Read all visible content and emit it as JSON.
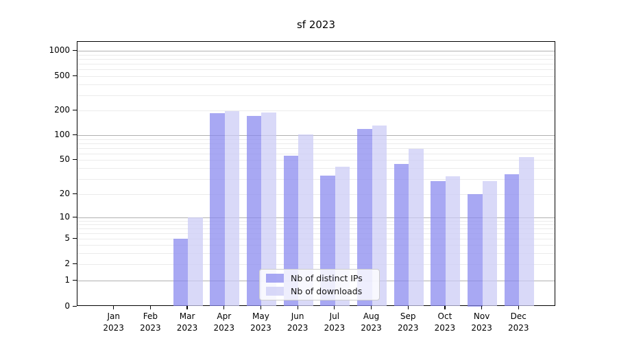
{
  "figure": {
    "title": "sf 2023"
  },
  "chart_data": {
    "type": "bar",
    "title": "sf 2023",
    "yscale": "symlog",
    "grid": true,
    "ylim": [
      0,
      1400
    ],
    "yticks": [
      0,
      1,
      2,
      5,
      10,
      20,
      50,
      100,
      200,
      500,
      1000
    ],
    "categories": [
      "Jan 2023",
      "Feb 2023",
      "Mar 2023",
      "Apr 2023",
      "May 2023",
      "Jun 2023",
      "Jul 2023",
      "Aug 2023",
      "Sep 2023",
      "Oct 2023",
      "Nov 2023",
      "Dec 2023"
    ],
    "series": [
      {
        "name": "Nb of distinct IPs",
        "color": "#a8a8f2",
        "fill": "rgba(134,134,238,0.72)",
        "values": [
          0,
          0,
          5,
          187,
          172,
          56,
          33,
          120,
          45,
          28,
          20,
          34
        ]
      },
      {
        "name": "Nb of downloads",
        "color": "#dadaf8",
        "fill": "rgba(203,203,245,0.72)",
        "values": [
          0,
          0,
          10,
          196,
          191,
          102,
          42,
          132,
          69,
          32,
          28,
          54
        ]
      }
    ],
    "legend": {
      "position": "lower center",
      "entries": [
        "Nb of distinct IPs",
        "Nb of downloads"
      ]
    },
    "colors": {
      "major_grid": "#b0b0b0",
      "minor_grid": "#ebebeb",
      "axis": "#000000",
      "background": "#ffffff",
      "legend_border": "#cccccc"
    }
  }
}
